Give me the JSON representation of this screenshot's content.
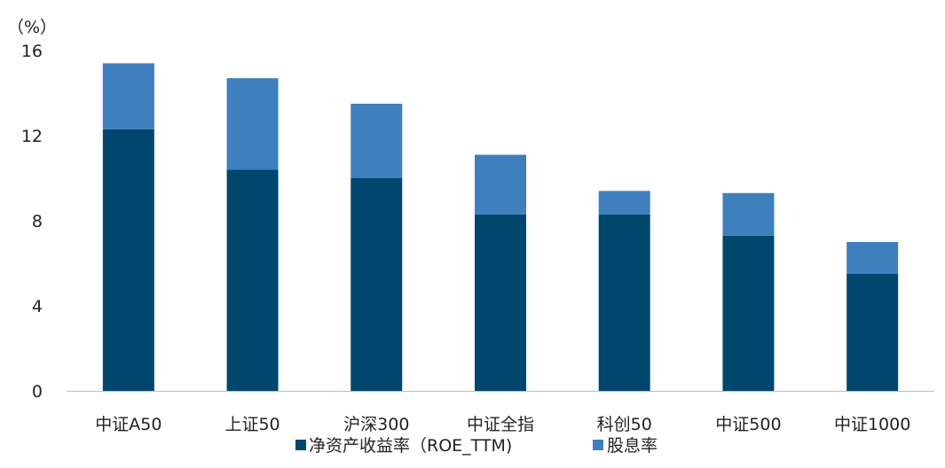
{
  "chart_data": {
    "type": "bar",
    "stacked": true,
    "unit_label": "（%）",
    "categories": [
      "中证A50",
      "上证50",
      "沪深300",
      "中证全指",
      "科创50",
      "中证500",
      "中证1000"
    ],
    "series": [
      {
        "name": "净资产收益率（ROE_TTM)",
        "color": "#00476E",
        "values": [
          12.3,
          10.4,
          10.0,
          8.3,
          8.3,
          7.3,
          5.5
        ]
      },
      {
        "name": "股息率",
        "color": "#3F7FBE",
        "values": [
          3.1,
          4.3,
          3.5,
          2.8,
          1.1,
          2.0,
          1.5
        ]
      }
    ],
    "yticks": [
      "0",
      "4",
      "8",
      "12",
      "16"
    ],
    "ylim": [
      0,
      16
    ],
    "grid": false,
    "legend_position": "bottom"
  }
}
